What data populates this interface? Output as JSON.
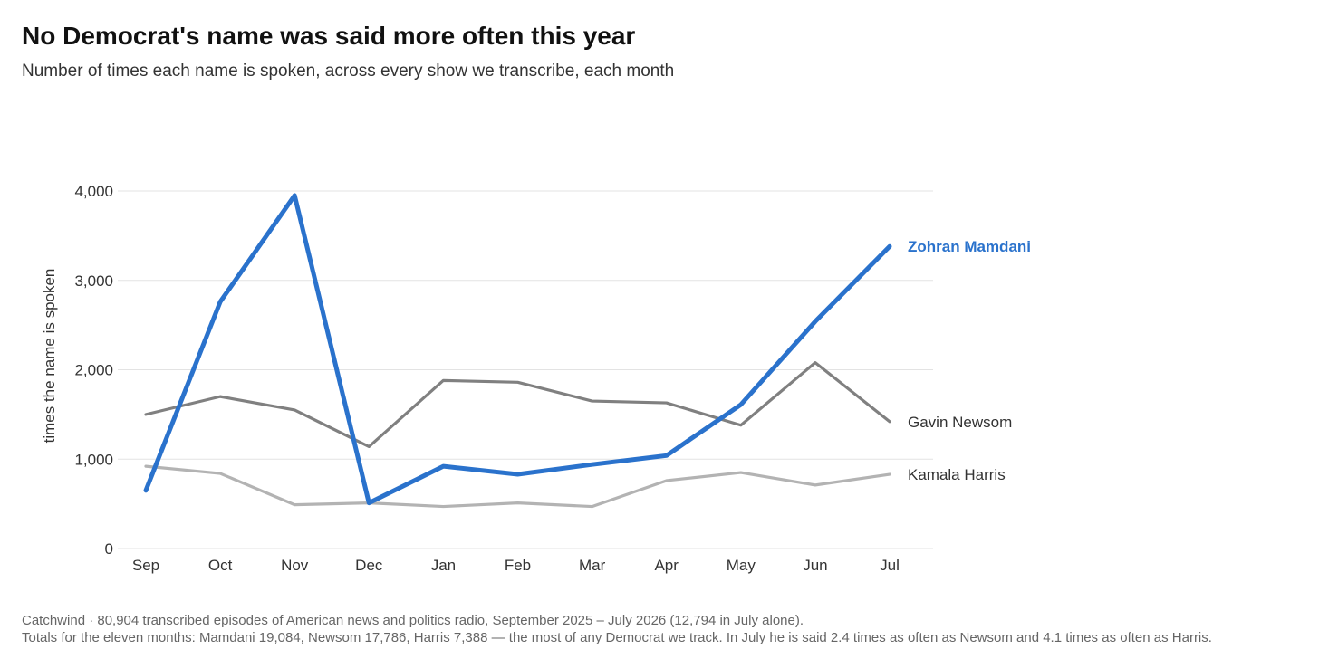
{
  "title": "No Democrat's name was said more often this year",
  "subtitle": "Number of times each name is spoken, across every show we transcribe, each month",
  "footer": {
    "line1": "Catchwind · 80,904 transcribed episodes of American news and politics radio, September 2025 – July 2026 (12,794 in July alone).",
    "line2": "Totals for the eleven months: Mamdani 19,084, Newsom 17,786, Harris 7,388 — the most of any Democrat we track. In July he is said 2.4 times as often as Newsom and 4.1 times as often as Harris."
  },
  "chart_data": {
    "type": "line",
    "title": "No Democrat's name was said more often this year",
    "subtitle": "Number of times each name is spoken, across every show we transcribe, each month",
    "xlabel": "",
    "ylabel": "times the name is spoken",
    "categories": [
      "Sep",
      "Oct",
      "Nov",
      "Dec",
      "Jan",
      "Feb",
      "Mar",
      "Apr",
      "May",
      "Jun",
      "Jul"
    ],
    "ylim": [
      0,
      4000
    ],
    "yticks": [
      0,
      1000,
      2000,
      3000,
      4000
    ],
    "ytick_labels": [
      "0",
      "1,000",
      "2,000",
      "3,000",
      "4,000"
    ],
    "grid": true,
    "legend": "direct labels at line ends",
    "series": [
      {
        "name": "Kamala Harris",
        "color": "#b3b3b3",
        "values": [
          920,
          840,
          490,
          510,
          470,
          510,
          470,
          760,
          850,
          710,
          830
        ]
      },
      {
        "name": "Gavin Newsom",
        "color": "#808080",
        "values": [
          1500,
          1700,
          1550,
          1140,
          1880,
          1860,
          1650,
          1630,
          1380,
          2080,
          1420
        ]
      },
      {
        "name": "Zohran Mamdani",
        "color": "#2a72cc",
        "highlight": true,
        "values": [
          650,
          2760,
          3950,
          510,
          920,
          830,
          940,
          1040,
          1610,
          2540,
          3380
        ]
      }
    ]
  }
}
